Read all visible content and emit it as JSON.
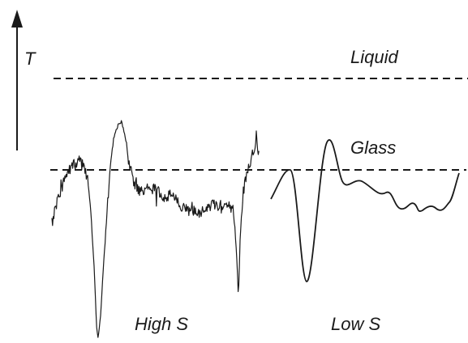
{
  "axis": {
    "label": "T"
  },
  "levels": [
    {
      "key": "liquid",
      "label": "Liquid"
    },
    {
      "key": "glass",
      "label": "Glass"
    }
  ],
  "regions": [
    {
      "key": "high",
      "label": "High S"
    },
    {
      "key": "low",
      "label": "Low S"
    }
  ],
  "colors": {
    "ink": "#1a1a1a",
    "background": "#ffffff"
  }
}
